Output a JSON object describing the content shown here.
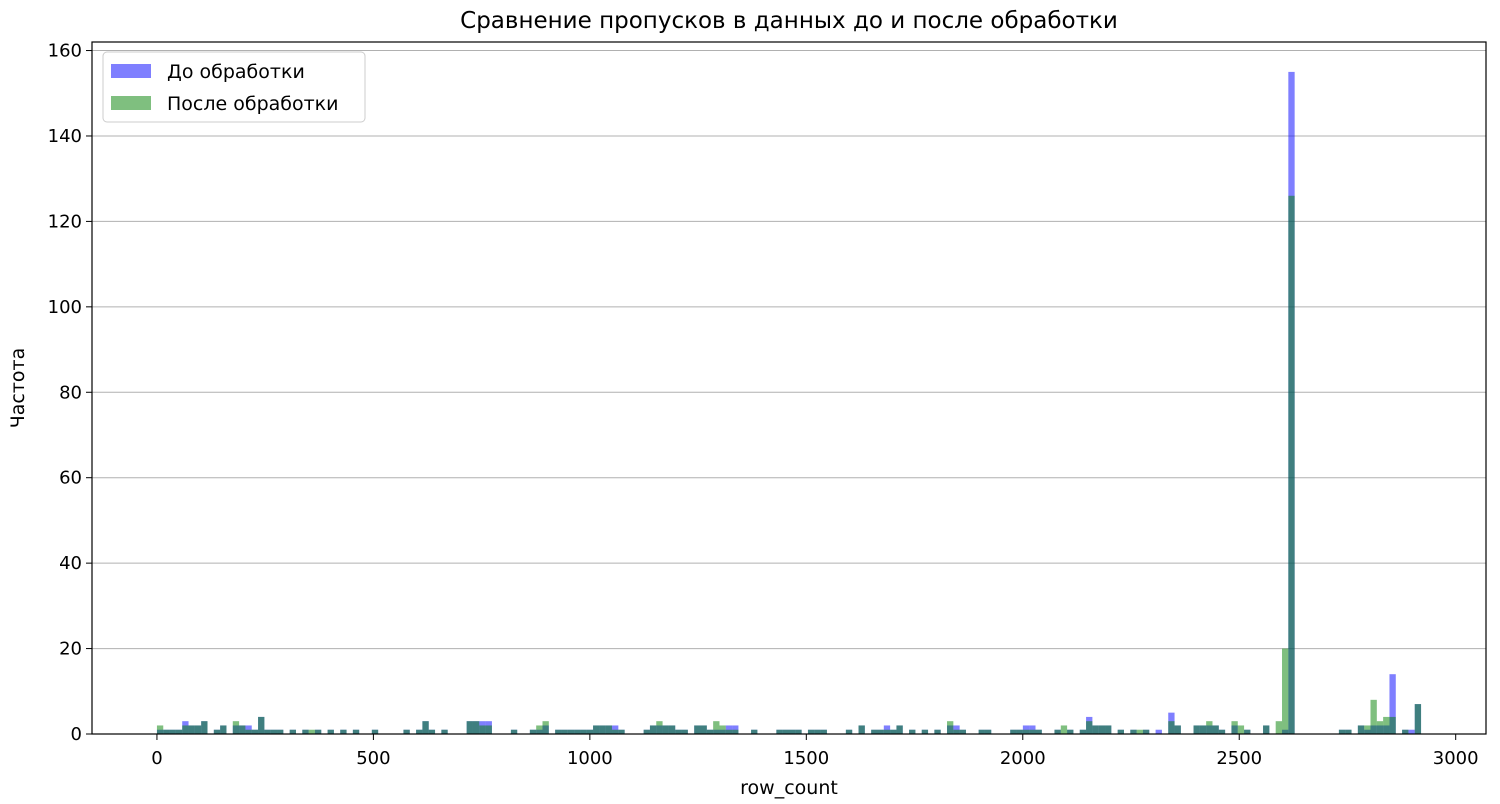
{
  "chart_data": {
    "type": "bar",
    "title": "Сравнение пропусков в данных до и после обработки",
    "xlabel": "row_count",
    "ylabel": "Частота",
    "xlim": [
      -150,
      3070
    ],
    "ylim": [
      0,
      162
    ],
    "xticks": [
      0,
      500,
      1000,
      1500,
      2000,
      2500,
      3000
    ],
    "yticks": [
      0,
      20,
      40,
      60,
      80,
      100,
      120,
      140,
      160
    ],
    "grid": "y",
    "legend_position": "upper left",
    "bin_width": 14.6,
    "bin_start": 0,
    "series": [
      {
        "name": "До обработки",
        "color": "#0000ff",
        "opacity": 0.5,
        "bins": [
          [
            0,
            1
          ],
          [
            1,
            1
          ],
          [
            2,
            1
          ],
          [
            3,
            1
          ],
          [
            4,
            3
          ],
          [
            5,
            2
          ],
          [
            6,
            2
          ],
          [
            7,
            3
          ],
          [
            9,
            1
          ],
          [
            10,
            2
          ],
          [
            12,
            2
          ],
          [
            13,
            2
          ],
          [
            14,
            2
          ],
          [
            15,
            1
          ],
          [
            16,
            4
          ],
          [
            17,
            1
          ],
          [
            18,
            1
          ],
          [
            19,
            1
          ],
          [
            21,
            1
          ],
          [
            23,
            1
          ],
          [
            25,
            1
          ],
          [
            27,
            1
          ],
          [
            29,
            1
          ],
          [
            31,
            1
          ],
          [
            34,
            1
          ],
          [
            39,
            1
          ],
          [
            41,
            1
          ],
          [
            42,
            3
          ],
          [
            43,
            1
          ],
          [
            45,
            1
          ],
          [
            49,
            3
          ],
          [
            50,
            3
          ],
          [
            51,
            3
          ],
          [
            52,
            3
          ],
          [
            56,
            1
          ],
          [
            59,
            1
          ],
          [
            60,
            1
          ],
          [
            61,
            2
          ],
          [
            63,
            1
          ],
          [
            64,
            1
          ],
          [
            65,
            1
          ],
          [
            66,
            1
          ],
          [
            67,
            1
          ],
          [
            68,
            1
          ],
          [
            69,
            2
          ],
          [
            70,
            2
          ],
          [
            71,
            2
          ],
          [
            72,
            2
          ],
          [
            73,
            1
          ],
          [
            77,
            1
          ],
          [
            78,
            2
          ],
          [
            79,
            2
          ],
          [
            80,
            2
          ],
          [
            81,
            2
          ],
          [
            82,
            1
          ],
          [
            83,
            1
          ],
          [
            85,
            2
          ],
          [
            86,
            2
          ],
          [
            87,
            1
          ],
          [
            88,
            1
          ],
          [
            89,
            1
          ],
          [
            90,
            2
          ],
          [
            91,
            2
          ],
          [
            94,
            1
          ],
          [
            98,
            1
          ],
          [
            99,
            1
          ],
          [
            100,
            1
          ],
          [
            101,
            1
          ],
          [
            103,
            1
          ],
          [
            104,
            1
          ],
          [
            105,
            1
          ],
          [
            109,
            1
          ],
          [
            111,
            2
          ],
          [
            113,
            1
          ],
          [
            114,
            1
          ],
          [
            115,
            2
          ],
          [
            116,
            1
          ],
          [
            117,
            2
          ],
          [
            119,
            1
          ],
          [
            121,
            1
          ],
          [
            123,
            1
          ],
          [
            125,
            2
          ],
          [
            126,
            2
          ],
          [
            127,
            1
          ],
          [
            130,
            1
          ],
          [
            131,
            1
          ],
          [
            135,
            1
          ],
          [
            136,
            1
          ],
          [
            137,
            2
          ],
          [
            138,
            2
          ],
          [
            139,
            1
          ],
          [
            142,
            1
          ],
          [
            144,
            1
          ],
          [
            146,
            1
          ],
          [
            147,
            4
          ],
          [
            148,
            2
          ],
          [
            149,
            2
          ],
          [
            150,
            2
          ],
          [
            152,
            1
          ],
          [
            154,
            1
          ],
          [
            156,
            1
          ],
          [
            158,
            1
          ],
          [
            160,
            5
          ],
          [
            161,
            2
          ],
          [
            164,
            2
          ],
          [
            165,
            2
          ],
          [
            166,
            2
          ],
          [
            167,
            2
          ],
          [
            168,
            1
          ],
          [
            170,
            2
          ],
          [
            172,
            1
          ],
          [
            175,
            2
          ],
          [
            178,
            1
          ],
          [
            179,
            155
          ],
          [
            187,
            1
          ],
          [
            188,
            1
          ],
          [
            190,
            2
          ],
          [
            191,
            1
          ],
          [
            192,
            2
          ],
          [
            193,
            2
          ],
          [
            194,
            2
          ],
          [
            195,
            14
          ],
          [
            197,
            1
          ],
          [
            198,
            1
          ],
          [
            199,
            7
          ]
        ]
      },
      {
        "name": "После обработки",
        "color": "#008000",
        "opacity": 0.5,
        "bins": [
          [
            0,
            2
          ],
          [
            1,
            1
          ],
          [
            2,
            1
          ],
          [
            3,
            1
          ],
          [
            4,
            2
          ],
          [
            5,
            2
          ],
          [
            6,
            2
          ],
          [
            7,
            3
          ],
          [
            9,
            1
          ],
          [
            10,
            2
          ],
          [
            12,
            3
          ],
          [
            13,
            2
          ],
          [
            14,
            1
          ],
          [
            15,
            1
          ],
          [
            16,
            4
          ],
          [
            17,
            1
          ],
          [
            18,
            1
          ],
          [
            19,
            1
          ],
          [
            21,
            1
          ],
          [
            23,
            1
          ],
          [
            24,
            1
          ],
          [
            25,
            1
          ],
          [
            27,
            1
          ],
          [
            29,
            1
          ],
          [
            31,
            1
          ],
          [
            34,
            1
          ],
          [
            39,
            1
          ],
          [
            41,
            1
          ],
          [
            42,
            3
          ],
          [
            43,
            1
          ],
          [
            45,
            1
          ],
          [
            49,
            3
          ],
          [
            50,
            3
          ],
          [
            51,
            2
          ],
          [
            52,
            2
          ],
          [
            56,
            1
          ],
          [
            59,
            1
          ],
          [
            60,
            2
          ],
          [
            61,
            3
          ],
          [
            63,
            1
          ],
          [
            64,
            1
          ],
          [
            65,
            1
          ],
          [
            66,
            1
          ],
          [
            67,
            1
          ],
          [
            68,
            1
          ],
          [
            69,
            2
          ],
          [
            70,
            2
          ],
          [
            71,
            2
          ],
          [
            72,
            1
          ],
          [
            73,
            1
          ],
          [
            77,
            1
          ],
          [
            78,
            2
          ],
          [
            79,
            3
          ],
          [
            80,
            2
          ],
          [
            81,
            2
          ],
          [
            82,
            1
          ],
          [
            83,
            1
          ],
          [
            85,
            2
          ],
          [
            86,
            2
          ],
          [
            87,
            1
          ],
          [
            88,
            3
          ],
          [
            89,
            2
          ],
          [
            90,
            1
          ],
          [
            91,
            1
          ],
          [
            94,
            1
          ],
          [
            98,
            1
          ],
          [
            99,
            1
          ],
          [
            100,
            1
          ],
          [
            101,
            1
          ],
          [
            103,
            1
          ],
          [
            104,
            1
          ],
          [
            105,
            1
          ],
          [
            109,
            1
          ],
          [
            111,
            2
          ],
          [
            113,
            1
          ],
          [
            114,
            1
          ],
          [
            115,
            1
          ],
          [
            116,
            1
          ],
          [
            117,
            2
          ],
          [
            119,
            1
          ],
          [
            121,
            1
          ],
          [
            123,
            1
          ],
          [
            125,
            3
          ],
          [
            126,
            1
          ],
          [
            127,
            1
          ],
          [
            130,
            1
          ],
          [
            131,
            1
          ],
          [
            135,
            1
          ],
          [
            136,
            1
          ],
          [
            137,
            1
          ],
          [
            138,
            1
          ],
          [
            139,
            1
          ],
          [
            142,
            1
          ],
          [
            143,
            2
          ],
          [
            144,
            1
          ],
          [
            146,
            1
          ],
          [
            147,
            3
          ],
          [
            148,
            2
          ],
          [
            149,
            2
          ],
          [
            150,
            2
          ],
          [
            152,
            1
          ],
          [
            154,
            1
          ],
          [
            155,
            1
          ],
          [
            156,
            1
          ],
          [
            160,
            3
          ],
          [
            161,
            2
          ],
          [
            164,
            2
          ],
          [
            165,
            2
          ],
          [
            166,
            3
          ],
          [
            167,
            2
          ],
          [
            168,
            1
          ],
          [
            170,
            3
          ],
          [
            171,
            2
          ],
          [
            172,
            1
          ],
          [
            175,
            2
          ],
          [
            177,
            3
          ],
          [
            178,
            20
          ],
          [
            179,
            126
          ],
          [
            187,
            1
          ],
          [
            188,
            1
          ],
          [
            190,
            2
          ],
          [
            191,
            2
          ],
          [
            192,
            8
          ],
          [
            193,
            3
          ],
          [
            194,
            4
          ],
          [
            195,
            4
          ],
          [
            197,
            1
          ],
          [
            199,
            7
          ]
        ]
      }
    ]
  }
}
